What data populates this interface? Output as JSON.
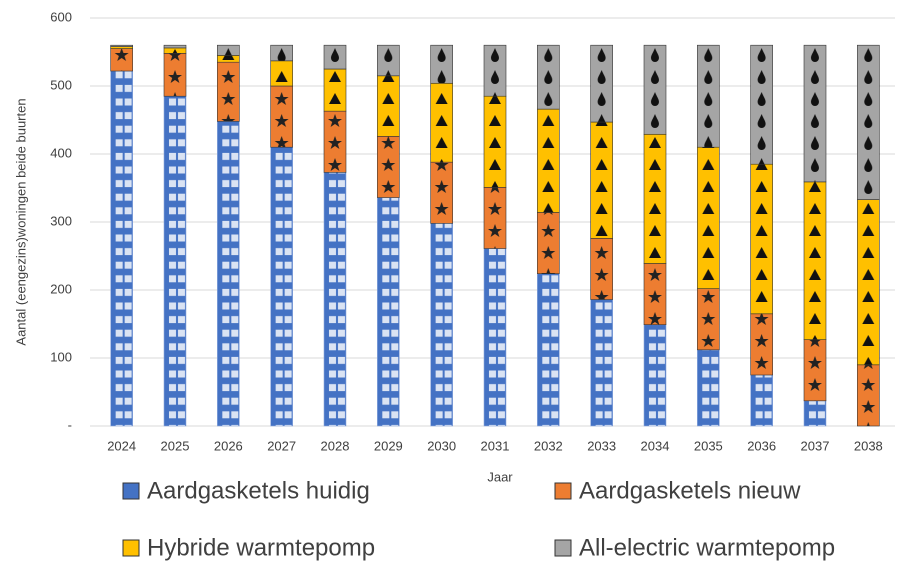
{
  "chart_data": {
    "type": "stacked_bar",
    "x_label": "Jaar",
    "y_label": "Aantal (eengezins)woningen beide buurten",
    "categories": [
      "2024",
      "2025",
      "2026",
      "2027",
      "2028",
      "2029",
      "2030",
      "2031",
      "2032",
      "2033",
      "2034",
      "2035",
      "2036",
      "2037",
      "2038"
    ],
    "series": [
      {
        "name": "Aardgasketels huidig",
        "color": "#4472c4",
        "values": [
          522,
          485,
          448,
          410,
          373,
          336,
          298,
          261,
          224,
          186,
          149,
          112,
          75,
          37,
          0
        ]
      },
      {
        "name": "Aardgasketels nieuw",
        "color": "#ed7d31",
        "values": [
          33,
          63,
          87,
          90,
          90,
          90,
          90,
          90,
          90,
          90,
          90,
          90,
          90,
          90,
          90
        ]
      },
      {
        "name": "Hybride warmtepomp",
        "color": "#ffc000",
        "values": [
          3,
          8,
          10,
          37,
          62,
          89,
          116,
          134,
          152,
          171,
          190,
          208,
          220,
          232,
          243
        ]
      },
      {
        "name": "All-electric warmtepomp",
        "color": "#a5a5a5",
        "values": [
          2,
          4,
          15,
          23,
          35,
          45,
          56,
          75,
          94,
          113,
          131,
          150,
          175,
          201,
          227
        ]
      }
    ],
    "ylim": [
      0,
      600
    ],
    "yticks": [
      {
        "value": 0,
        "label": "-"
      },
      100,
      200,
      300,
      400,
      500,
      600
    ],
    "grid": true
  }
}
